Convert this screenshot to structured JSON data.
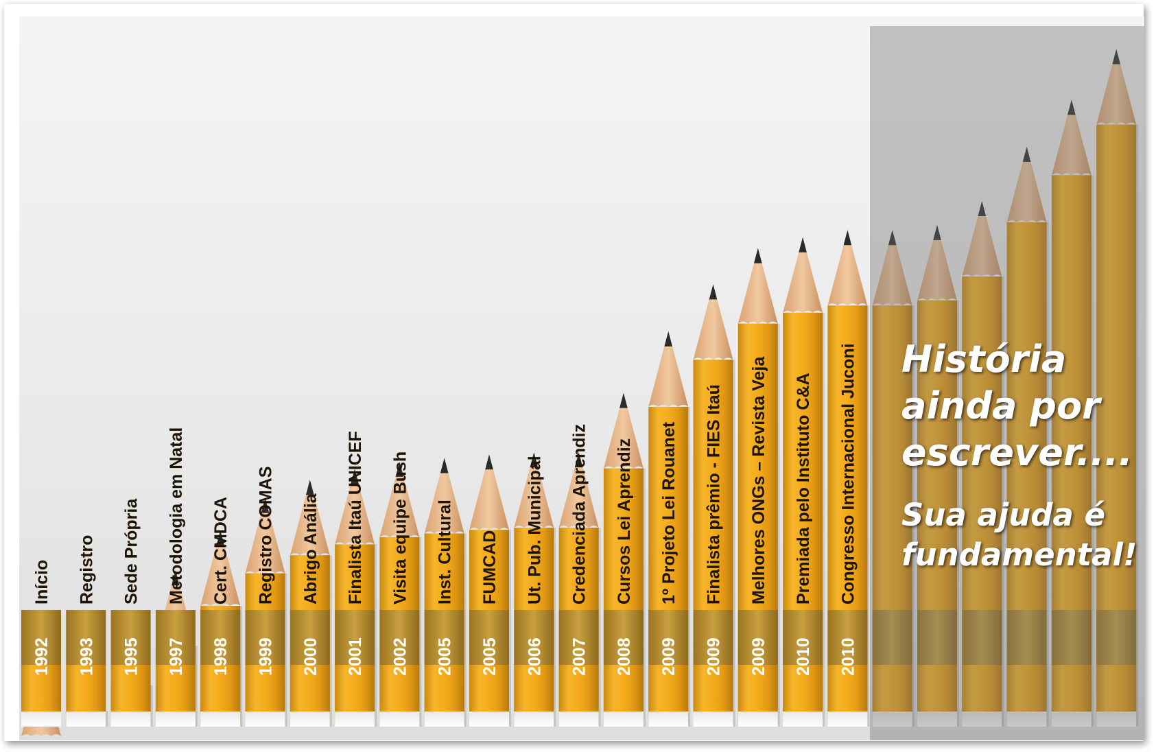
{
  "pencils": [
    {
      "year": "1992",
      "label": "Início",
      "tip_y": 0.11
    },
    {
      "year": "1993",
      "label": "Registro",
      "tip_y": 0.145
    },
    {
      "year": "1995",
      "label": "Sede Própria",
      "tip_y": 0.18
    },
    {
      "year": "1997",
      "label": "Metodologia em Natal",
      "tip_y": 0.235
    },
    {
      "year": "1998",
      "label": "Cert. CMDCA",
      "tip_y": 0.29
    },
    {
      "year": "1999",
      "label": "Registro COMAS",
      "tip_y": 0.335
    },
    {
      "year": "2000",
      "label": "Abrigo Anália",
      "tip_y": 0.36
    },
    {
      "year": "2001",
      "label": "Finalista Itaú UNICEF",
      "tip_y": 0.375
    },
    {
      "year": "2002",
      "label": "Visita equipe Bush",
      "tip_y": 0.385
    },
    {
      "year": "2005",
      "label": "Inst. Cultural",
      "tip_y": 0.39
    },
    {
      "year": "2005",
      "label": "FUMCAD",
      "tip_y": 0.395
    },
    {
      "year": "2006",
      "label": "Ut.  Pub. Municipal",
      "tip_y": 0.398
    },
    {
      "year": "2007",
      "label": "Credenciada Aprendiz",
      "tip_y": 0.398
    },
    {
      "year": "2008",
      "label": "Cursos Lei Aprendiz",
      "tip_y": 0.48
    },
    {
      "year": "2009",
      "label": "1º Projeto Lei Rouanet",
      "tip_y": 0.565
    },
    {
      "year": "2009",
      "label": "Finalista prêmio - FIES Itaú",
      "tip_y": 0.63
    },
    {
      "year": "2009",
      "label": "Melhores ONGs – Revista Veja",
      "tip_y": 0.68
    },
    {
      "year": "2010",
      "label": "Premiada pelo Instituto C&A",
      "tip_y": 0.695
    },
    {
      "year": "2010",
      "label": "Congresso Internacional Juconi",
      "tip_y": 0.705
    },
    {
      "year": "",
      "label": "",
      "tip_y": 0.705
    },
    {
      "year": "",
      "label": "",
      "tip_y": 0.712
    },
    {
      "year": "",
      "label": "",
      "tip_y": 0.745
    },
    {
      "year": "",
      "label": "",
      "tip_y": 0.82
    },
    {
      "year": "",
      "label": "",
      "tip_y": 0.885
    },
    {
      "year": "",
      "label": "",
      "tip_y": 0.955
    }
  ],
  "message": {
    "title": "História ainda por escrever....",
    "subtitle": "Sua ajuda é fundamental!"
  },
  "colors": {
    "pencil_body": "#f0a818",
    "pencil_wood": "#e8b88a",
    "pencil_lead": "#2a2a2a",
    "band": "#c8941c",
    "text": "#1e1406"
  }
}
